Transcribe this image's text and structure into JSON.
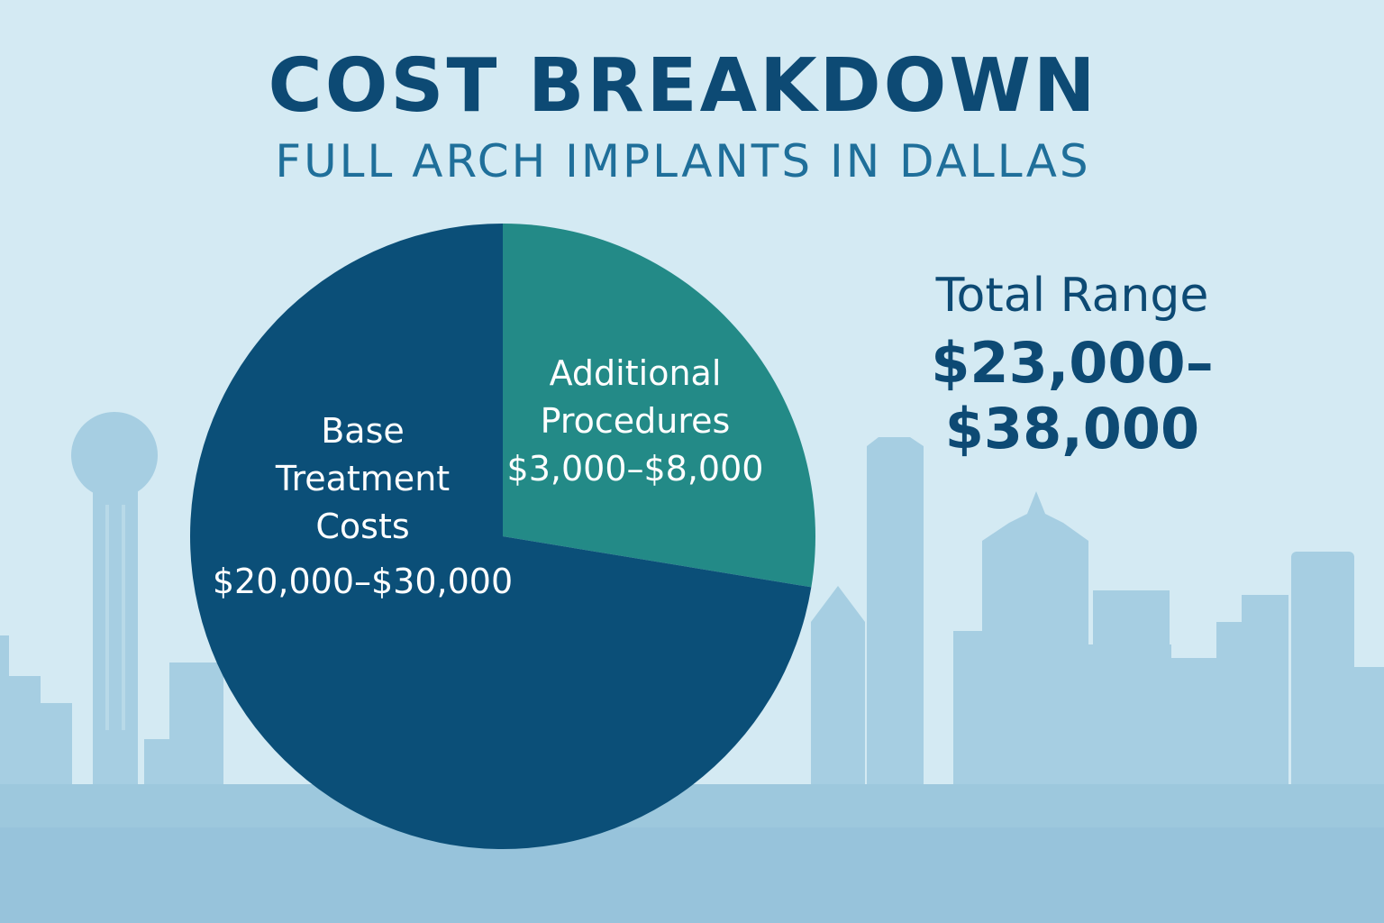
{
  "header": {
    "title": "COST BREAKDOWN",
    "subtitle": "FULL ARCH IMPLANTS IN DALLAS"
  },
  "total": {
    "label": "Total Range",
    "value": "$23,000–$38,000"
  },
  "colors": {
    "background": "#d4eaf3",
    "base": "#0b4f78",
    "additional": "#238a87",
    "skyline": "#a3cce0",
    "title": "#0d4a74"
  },
  "chart_data": {
    "type": "pie",
    "title": "COST BREAKDOWN",
    "slices": [
      {
        "name": "Additional Procedures",
        "line1": "Additional",
        "line2": "Procedures",
        "range": "$3,000–$8,000",
        "min": 3000,
        "max": 8000,
        "share_percent": 27.6,
        "color": "#238a87"
      },
      {
        "name": "Base Treatment Costs",
        "line1": "Base",
        "line2": "Treatment",
        "line3": "Costs",
        "range": "$20,000–$30,000",
        "min": 20000,
        "max": 30000,
        "share_percent": 72.4,
        "color": "#0b4f78"
      }
    ]
  }
}
